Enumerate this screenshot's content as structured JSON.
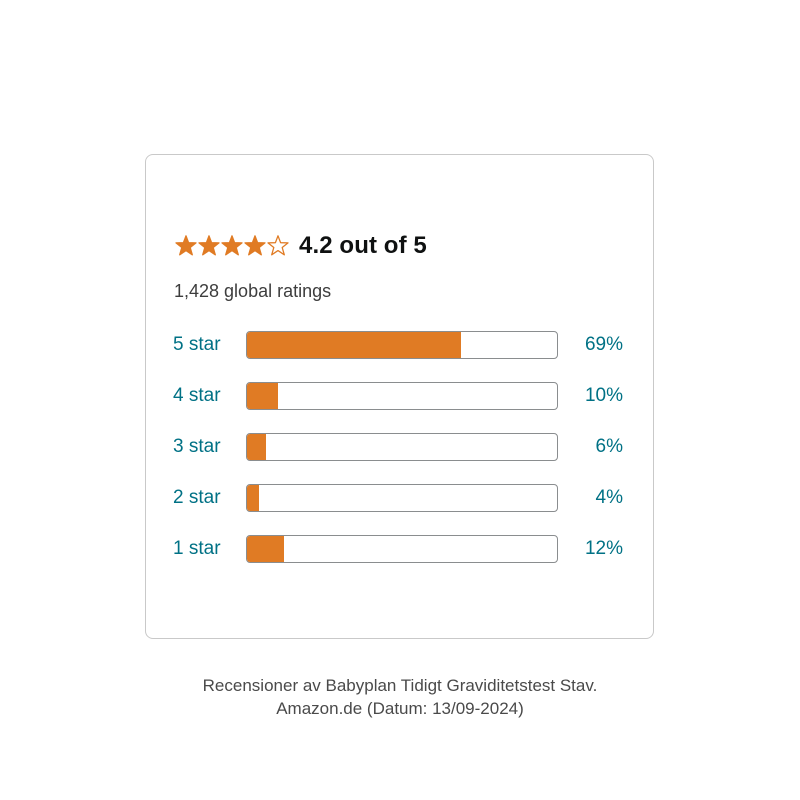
{
  "rating_summary": {
    "stars": 4.2,
    "max_stars": 5,
    "star_color": "#e07b24",
    "average_text": "4.2 out of 5",
    "total_text": "1,428 global ratings"
  },
  "histogram": {
    "bar_color": "#e07b24",
    "label_color": "#007185",
    "rows": [
      {
        "label": "5 star",
        "percent": 69,
        "percent_text": "69%"
      },
      {
        "label": "4 star",
        "percent": 10,
        "percent_text": "10%"
      },
      {
        "label": "3 star",
        "percent": 6,
        "percent_text": "6%"
      },
      {
        "label": "2 star",
        "percent": 4,
        "percent_text": "4%"
      },
      {
        "label": "1 star",
        "percent": 12,
        "percent_text": "12%"
      }
    ]
  },
  "caption": {
    "line1": "Recensioner av Babyplan Tidigt Graviditetstest Stav.",
    "line2": "Amazon.de (Datum: 13/09-2024)"
  }
}
